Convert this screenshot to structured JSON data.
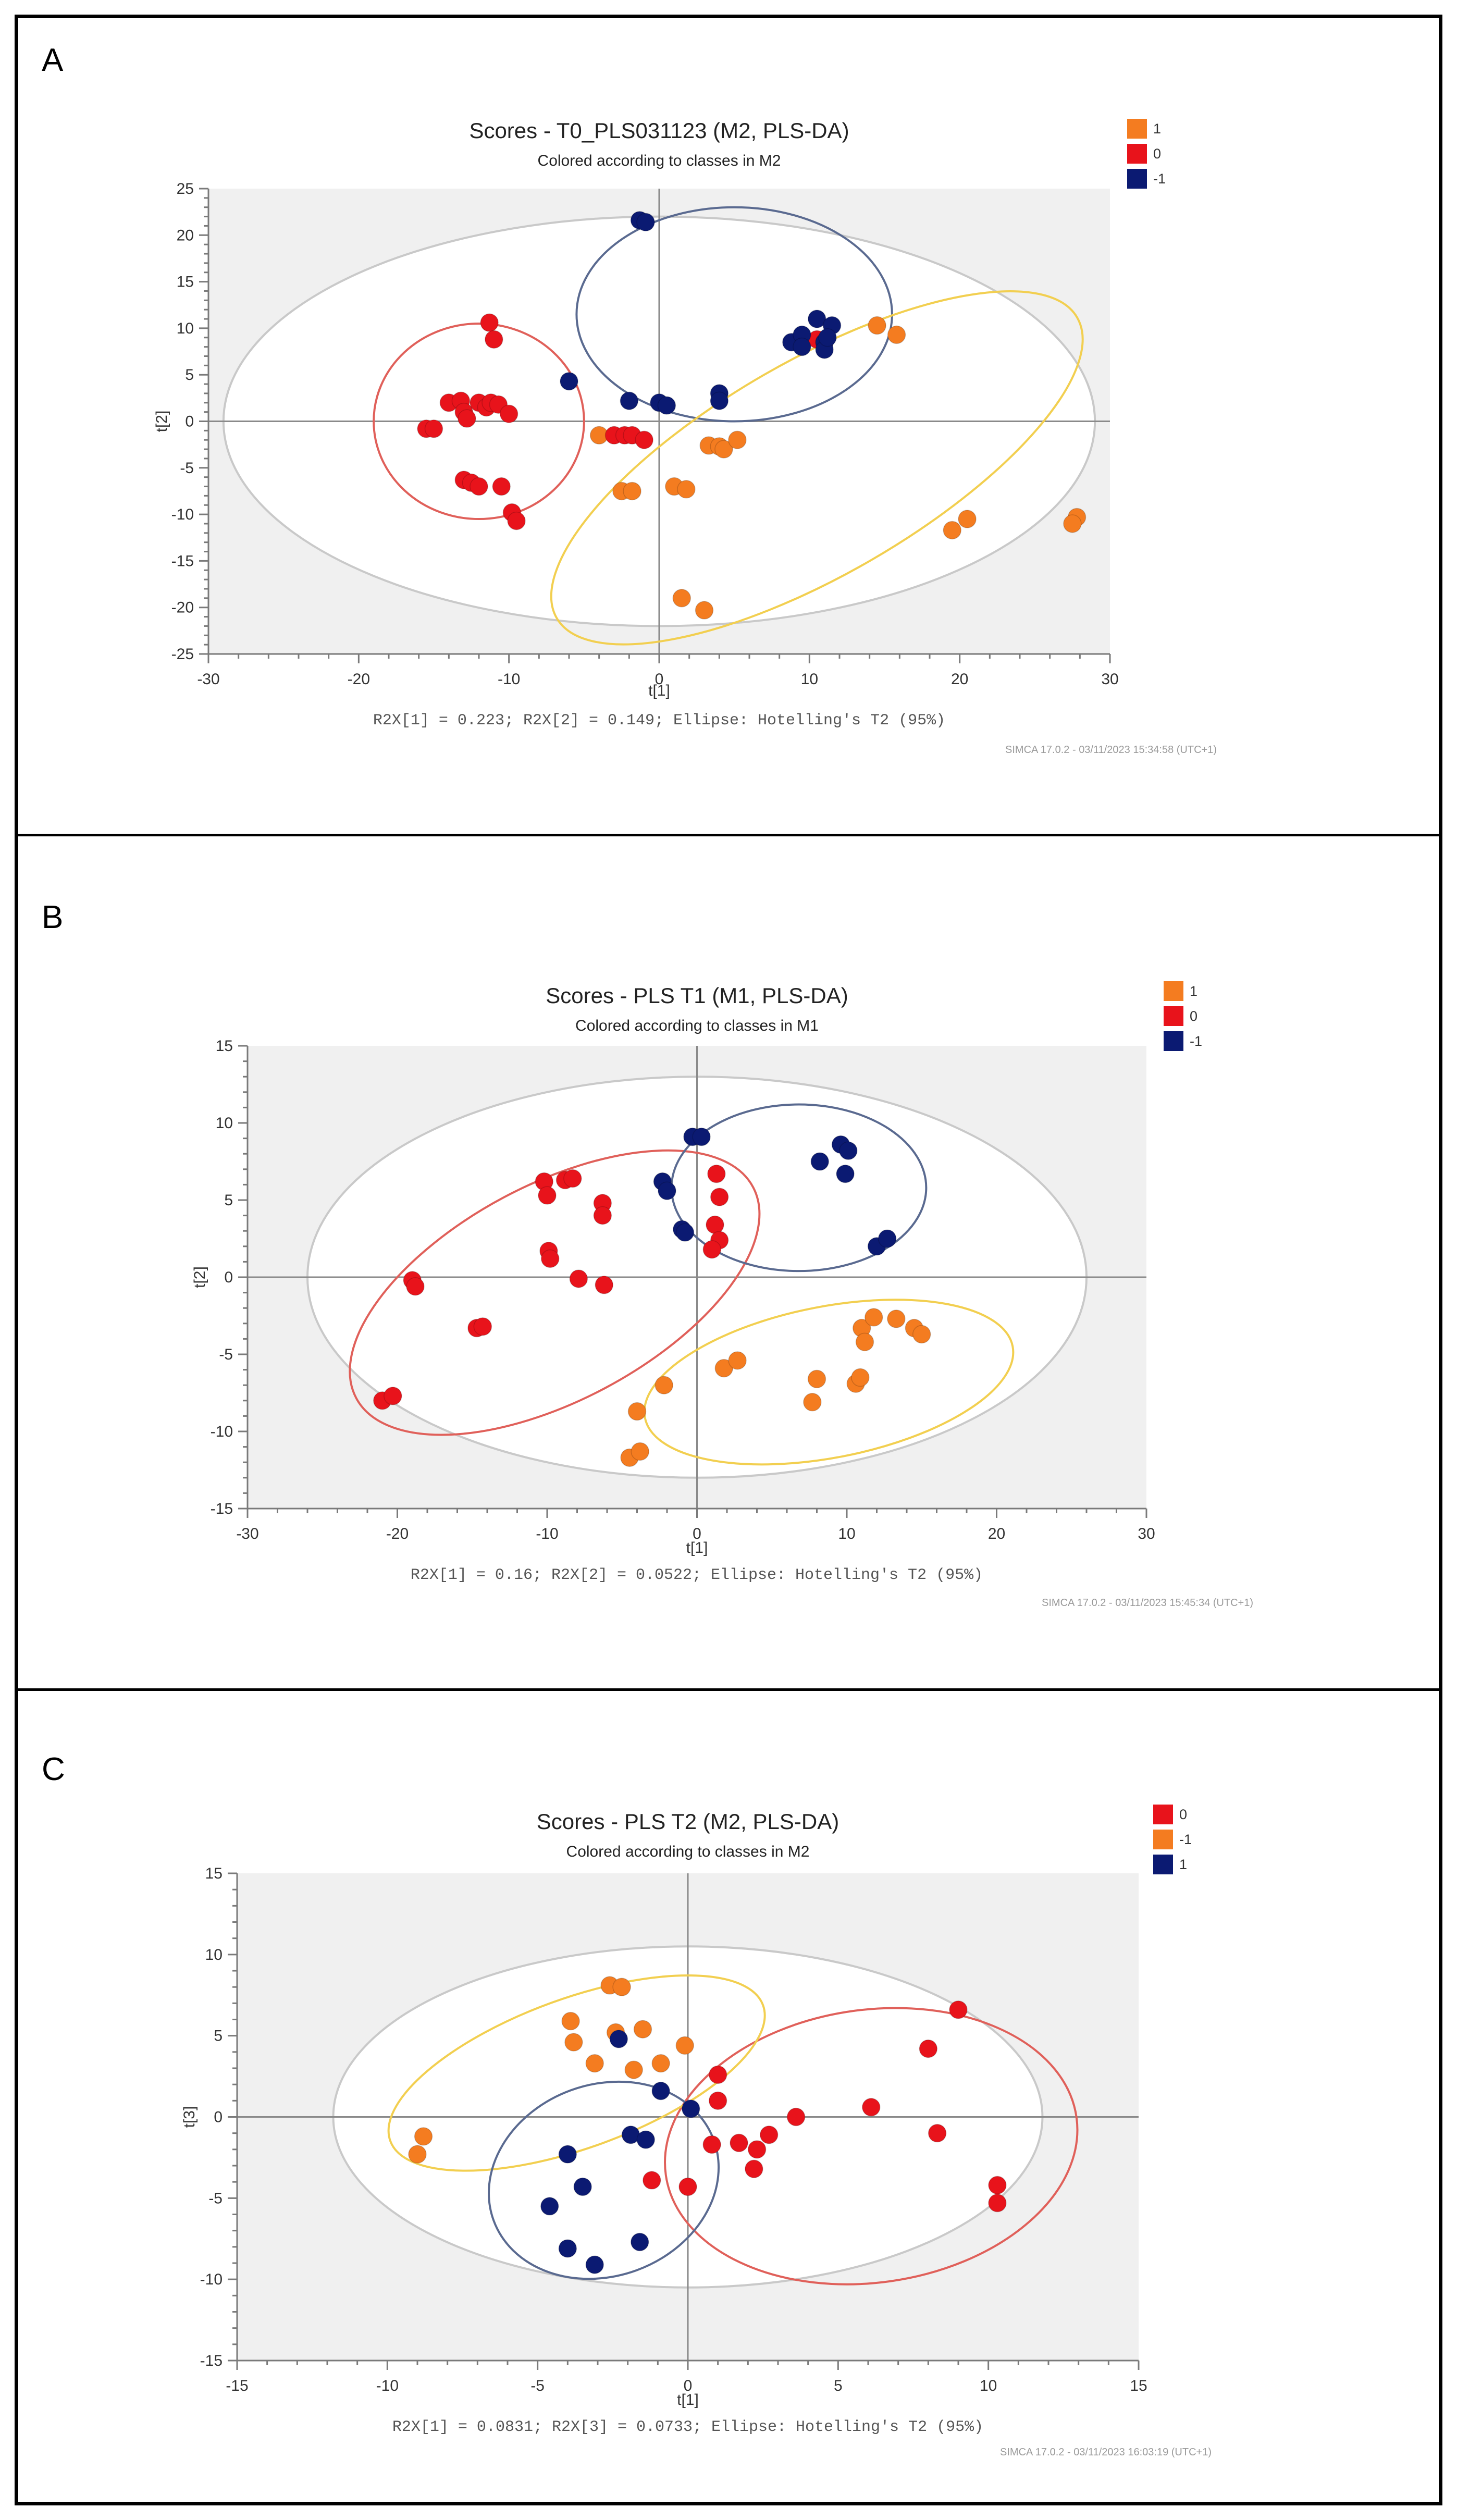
{
  "panels": [
    {
      "letter": "A",
      "chart_data": {
        "type": "scatter",
        "title": "Scores - T0_PLS031123 (M2, PLS-DA)",
        "subtitle": "Colored according to classes in M2",
        "xlabel": "t[1]",
        "ylabel": "t[2]",
        "xlim": [
          -30,
          30
        ],
        "ylim": [
          -25,
          25
        ],
        "xticks": [
          -30,
          -20,
          -10,
          0,
          10,
          20,
          30
        ],
        "yticks": [
          25,
          20,
          15,
          10,
          5,
          0,
          -5,
          -10,
          -15,
          -20,
          -25
        ],
        "footnote": "R2X[1] = 0.223; R2X[2] = 0.149; Ellipse: Hotelling's T2 (95%)",
        "software": "SIMCA 17.0.2 - 03/11/2023 15:34:58 (UTC+1)",
        "legend": [
          {
            "label": "1",
            "color": "#F47C20"
          },
          {
            "label": "0",
            "color": "#E8131B"
          },
          {
            "label": "-1",
            "color": "#0B1A72"
          }
        ],
        "hotelling_ellipse": {
          "cx": 0,
          "cy": 0,
          "rx": 29,
          "ry": 22
        },
        "class_ellipses": [
          {
            "class": "0",
            "color": "#E0605A",
            "cx": -12,
            "cy": 0,
            "rx": 7,
            "ry": 10.5,
            "angle": 0
          },
          {
            "class": "-1",
            "color": "#5A6A90",
            "cx": 5,
            "cy": 11.5,
            "rx": 10.5,
            "ry": 11.5,
            "angle": 0
          },
          {
            "class": "1",
            "color": "#F2CF50",
            "cx": 10.5,
            "cy": -5,
            "rx": 20,
            "ry": 11.5,
            "angle": 30
          }
        ],
        "series": [
          {
            "name": "1",
            "color": "#F47C20",
            "points": [
              [
                -4,
                -1.5
              ],
              [
                -2.5,
                -7.5
              ],
              [
                -1.8,
                -7.5
              ],
              [
                1,
                -7
              ],
              [
                1.8,
                -7.3
              ],
              [
                3.3,
                -2.6
              ],
              [
                4,
                -2.7
              ],
              [
                4.3,
                -3
              ],
              [
                5.2,
                -2
              ],
              [
                14.5,
                10.3
              ],
              [
                15.8,
                9.3
              ],
              [
                1.5,
                -19
              ],
              [
                3,
                -20.3
              ],
              [
                19.5,
                -11.7
              ],
              [
                20.5,
                -10.5
              ],
              [
                27.8,
                -10.3
              ],
              [
                27.5,
                -11
              ]
            ]
          },
          {
            "name": "0",
            "color": "#E8131B",
            "points": [
              [
                -15.5,
                -0.8
              ],
              [
                -15,
                -0.8
              ],
              [
                -14,
                2
              ],
              [
                -13.2,
                2.2
              ],
              [
                -13,
                1
              ],
              [
                -12.8,
                0.3
              ],
              [
                -12,
                2
              ],
              [
                -11.5,
                1.5
              ],
              [
                -11.2,
                2
              ],
              [
                -10.7,
                1.8
              ],
              [
                -10,
                0.8
              ],
              [
                -11.3,
                10.6
              ],
              [
                -11,
                8.8
              ],
              [
                -13,
                -6.3
              ],
              [
                -12.5,
                -6.6
              ],
              [
                -12,
                -7
              ],
              [
                -10.5,
                -7
              ],
              [
                -9.8,
                -9.8
              ],
              [
                -9.5,
                -10.7
              ],
              [
                -3,
                -1.5
              ],
              [
                -2.3,
                -1.5
              ],
              [
                -1.8,
                -1.5
              ],
              [
                -1,
                -2
              ],
              [
                10.5,
                8.8
              ],
              [
                11,
                8.5
              ]
            ]
          },
          {
            "name": "-1",
            "color": "#0B1A72",
            "points": [
              [
                -1.3,
                21.6
              ],
              [
                -0.9,
                21.4
              ],
              [
                -6,
                4.3
              ],
              [
                -2,
                2.2
              ],
              [
                0,
                2
              ],
              [
                0.5,
                1.7
              ],
              [
                4,
                3
              ],
              [
                4,
                2.2
              ],
              [
                8.8,
                8.5
              ],
              [
                9.5,
                9.3
              ],
              [
                9.5,
                8
              ],
              [
                10.5,
                11
              ],
              [
                11,
                8.5
              ],
              [
                11.5,
                10.3
              ],
              [
                11,
                7.7
              ],
              [
                11.2,
                9
              ]
            ]
          }
        ]
      }
    },
    {
      "letter": "B",
      "chart_data": {
        "type": "scatter",
        "title": "Scores - PLS T1 (M1, PLS-DA)",
        "subtitle": "Colored according to classes in M1",
        "xlabel": "t[1]",
        "ylabel": "t[2]",
        "xlim": [
          -30,
          30
        ],
        "ylim": [
          -15,
          15
        ],
        "xticks": [
          -30,
          -20,
          -10,
          0,
          10,
          20,
          30
        ],
        "yticks": [
          15,
          10,
          5,
          0,
          -5,
          -10,
          -15
        ],
        "footnote": "R2X[1] = 0.16; R2X[2] = 0.0522; Ellipse: Hotelling's T2 (95%)",
        "software": "SIMCA 17.0.2 - 03/11/2023 15:45:34 (UTC+1)",
        "legend": [
          {
            "label": "1",
            "color": "#F47C20"
          },
          {
            "label": "0",
            "color": "#E8131B"
          },
          {
            "label": "-1",
            "color": "#0B1A72"
          }
        ],
        "hotelling_ellipse": {
          "cx": 0,
          "cy": 0,
          "rx": 26,
          "ry": 13
        },
        "class_ellipses": [
          {
            "class": "0",
            "color": "#E0605A",
            "cx": -9.5,
            "cy": -1,
            "rx": 15,
            "ry": 7,
            "angle": 28
          },
          {
            "class": "-1",
            "color": "#5A6A90",
            "cx": 6.8,
            "cy": 5.8,
            "rx": 8.5,
            "ry": 5.4,
            "angle": 0
          },
          {
            "class": "1",
            "color": "#F2CF50",
            "cx": 8.8,
            "cy": -6.8,
            "rx": 12.5,
            "ry": 4.9,
            "angle": 11
          }
        ],
        "series": [
          {
            "name": "1",
            "color": "#F47C20",
            "points": [
              [
                -4,
                -8.7
              ],
              [
                -4.5,
                -11.7
              ],
              [
                -3.8,
                -11.3
              ],
              [
                -2.2,
                -7
              ],
              [
                1.8,
                -5.9
              ],
              [
                2.7,
                -5.4
              ],
              [
                7.7,
                -8.1
              ],
              [
                8,
                -6.6
              ],
              [
                10.6,
                -6.9
              ],
              [
                10.9,
                -6.5
              ],
              [
                11,
                -3.3
              ],
              [
                11.2,
                -4.2
              ],
              [
                11.8,
                -2.6
              ],
              [
                13.3,
                -2.7
              ],
              [
                14.5,
                -3.3
              ],
              [
                15,
                -3.7
              ]
            ]
          },
          {
            "name": "0",
            "color": "#E8131B",
            "points": [
              [
                -21,
                -8
              ],
              [
                -20.3,
                -7.7
              ],
              [
                -19,
                -0.2
              ],
              [
                -18.8,
                -0.6
              ],
              [
                -14.7,
                -3.3
              ],
              [
                -14.3,
                -3.2
              ],
              [
                -10.2,
                6.2
              ],
              [
                -10,
                5.3
              ],
              [
                -8.8,
                6.3
              ],
              [
                -8.3,
                6.4
              ],
              [
                -9.9,
                1.7
              ],
              [
                -9.8,
                1.2
              ],
              [
                -7.9,
                -0.1
              ],
              [
                -6.3,
                4.8
              ],
              [
                -6.3,
                4
              ],
              [
                -6.2,
                -0.5
              ],
              [
                1.3,
                6.7
              ],
              [
                1.5,
                5.2
              ],
              [
                1.2,
                3.4
              ],
              [
                1.5,
                2.4
              ],
              [
                1,
                1.8
              ]
            ]
          },
          {
            "name": "-1",
            "color": "#0B1A72",
            "points": [
              [
                -0.3,
                9.1
              ],
              [
                0.3,
                9.1
              ],
              [
                -2.3,
                6.2
              ],
              [
                -2,
                5.6
              ],
              [
                -1,
                3.1
              ],
              [
                -0.8,
                2.9
              ],
              [
                8.2,
                7.5
              ],
              [
                9.6,
                8.6
              ],
              [
                10.1,
                8.2
              ],
              [
                9.9,
                6.7
              ],
              [
                12,
                2
              ],
              [
                12.7,
                2.5
              ]
            ]
          }
        ]
      }
    },
    {
      "letter": "C",
      "chart_data": {
        "type": "scatter",
        "title": "Scores - PLS T2 (M2, PLS-DA)",
        "subtitle": "Colored according to classes in M2",
        "xlabel": "t[1]",
        "ylabel": "t[3]",
        "xlim": [
          -15,
          15
        ],
        "ylim": [
          -15,
          15
        ],
        "xticks": [
          -15,
          -10,
          -5,
          0,
          5,
          10,
          15
        ],
        "yticks": [
          15,
          10,
          5,
          0,
          -5,
          -10,
          -15
        ],
        "footnote": "R2X[1] = 0.0831; R2X[3] = 0.0733; Ellipse: Hotelling's T2 (95%)",
        "software": "SIMCA 17.0.2 - 03/11/2023 16:03:19 (UTC+1)",
        "legend": [
          {
            "label": "0",
            "color": "#E8131B"
          },
          {
            "label": "-1",
            "color": "#F47C20"
          },
          {
            "label": "1",
            "color": "#0B1A72"
          }
        ],
        "hotelling_ellipse": {
          "cx": 0,
          "cy": 0,
          "rx": 11.8,
          "ry": 10.5
        },
        "class_ellipses": [
          {
            "class": "0",
            "color": "#E0605A",
            "cx": 6.1,
            "cy": -1.8,
            "rx": 6.9,
            "ry": 8.4,
            "angle": 8
          },
          {
            "class": "-1",
            "color": "#F2CF50",
            "cx": -3.7,
            "cy": 2.7,
            "rx": 6.6,
            "ry": 4.6,
            "angle": 20
          },
          {
            "class": "1",
            "color": "#5A6A90",
            "cx": -2.8,
            "cy": -3.9,
            "rx": 3.9,
            "ry": 5.9,
            "angle": 20
          }
        ],
        "series": [
          {
            "name": "0",
            "color": "#E8131B",
            "points": [
              [
                -1.2,
                -3.9
              ],
              [
                0,
                -4.3
              ],
              [
                0.8,
                -1.7
              ],
              [
                1,
                2.6
              ],
              [
                1,
                1
              ],
              [
                1.7,
                -1.6
              ],
              [
                2.3,
                -2
              ],
              [
                2.2,
                -3.2
              ],
              [
                2.7,
                -1.1
              ],
              [
                3.6,
                0
              ],
              [
                6.1,
                0.6
              ],
              [
                8,
                4.2
              ],
              [
                9,
                6.6
              ],
              [
                8.3,
                -1
              ],
              [
                10.3,
                -4.2
              ],
              [
                10.3,
                -5.3
              ]
            ]
          },
          {
            "name": "-1",
            "color": "#F47C20",
            "points": [
              [
                -8.8,
                -1.2
              ],
              [
                -9,
                -2.3
              ],
              [
                -3.9,
                5.9
              ],
              [
                -3.8,
                4.6
              ],
              [
                -2.6,
                8.1
              ],
              [
                -2.2,
                8
              ],
              [
                -2.4,
                5.2
              ],
              [
                -1.8,
                2.9
              ],
              [
                -1.5,
                5.4
              ],
              [
                -3.1,
                3.3
              ],
              [
                -0.9,
                3.3
              ],
              [
                -0.1,
                4.4
              ]
            ]
          },
          {
            "name": "1",
            "color": "#0B1A72",
            "points": [
              [
                -2.3,
                4.8
              ],
              [
                -0.9,
                1.6
              ],
              [
                -1.9,
                -1.1
              ],
              [
                -1.4,
                -1.4
              ],
              [
                0.1,
                0.5
              ],
              [
                -4,
                -2.3
              ],
              [
                -3.5,
                -4.3
              ],
              [
                -4.6,
                -5.5
              ],
              [
                -4,
                -8.1
              ],
              [
                -3.1,
                -9.1
              ],
              [
                -1.6,
                -7.7
              ]
            ]
          }
        ]
      }
    }
  ]
}
